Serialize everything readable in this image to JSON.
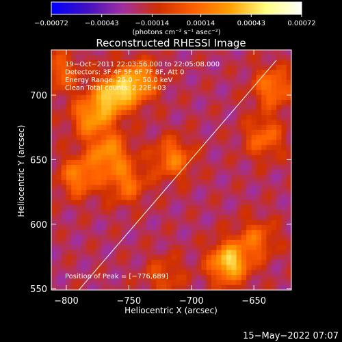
{
  "chart_data": {
    "type": "heatmap",
    "title": "Reconstructed RHESSI Image",
    "xlabel": "Heliocentric X (arcsec)",
    "ylabel": "Heliocentric Y (arcsec)",
    "xlim": [
      -812,
      -620
    ],
    "ylim": [
      549,
      735
    ],
    "x_ticks": [
      -800,
      -750,
      -700,
      -650
    ],
    "x_tick_labels": [
      "−800",
      "−750",
      "−700",
      "−650"
    ],
    "y_ticks": [
      550,
      600,
      650,
      700
    ],
    "y_tick_labels": [
      "550",
      "600",
      "650",
      "700"
    ],
    "colorbar": {
      "range": [
        -0.00072,
        0.00072
      ],
      "ticks": [
        -0.00072,
        -0.00043,
        -0.00014,
        0.00014,
        0.00043,
        0.00072
      ],
      "tick_labels": [
        "−0.00072",
        "−0.00043",
        "−0.00014",
        "0.00014",
        "0.00043",
        "0.00072"
      ],
      "units_label": "(photons cm⁻² s⁻¹ asec⁻²)",
      "colors": [
        "#0000ff",
        "#4010c0",
        "#a030a0",
        "#d03000",
        "#ff6000",
        "#ffa000",
        "#ffff80",
        "#ffffff"
      ]
    },
    "annotations": [
      "19−Oct−2011 22:03:56.000 to 22:05:08.000",
      "Detectors: 3F 4F 5F 6F 7F 8F, Att 0",
      "Energy Range: 25.0 − 50.0 keV",
      "Clean     Total counts: 2.22E+03"
    ],
    "peak_label": "Position of Peak = [−776,689]",
    "blobs": [
      {
        "x": -762,
        "y": 700,
        "v": 0.00062
      },
      {
        "x": -742,
        "y": 711,
        "v": 0.00052
      },
      {
        "x": -780,
        "y": 683,
        "v": 0.00048
      },
      {
        "x": -766,
        "y": 655,
        "v": 0.00046
      },
      {
        "x": -790,
        "y": 637,
        "v": 0.00042
      },
      {
        "x": -752,
        "y": 632,
        "v": 0.00036
      },
      {
        "x": -715,
        "y": 651,
        "v": 0.0004
      },
      {
        "x": -670,
        "y": 570,
        "v": 0.00066
      },
      {
        "x": -648,
        "y": 588,
        "v": 0.00032
      },
      {
        "x": -635,
        "y": 706,
        "v": 0.0004
      },
      {
        "x": -642,
        "y": 667,
        "v": 0.00034
      },
      {
        "x": -805,
        "y": 718,
        "v": 0.0003
      },
      {
        "x": -722,
        "y": 560,
        "v": 0.00022
      }
    ],
    "limb_line": {
      "x": [
        -790,
        -632
      ],
      "y": [
        549,
        727
      ]
    },
    "footer": "15−May−2022 07:07"
  }
}
